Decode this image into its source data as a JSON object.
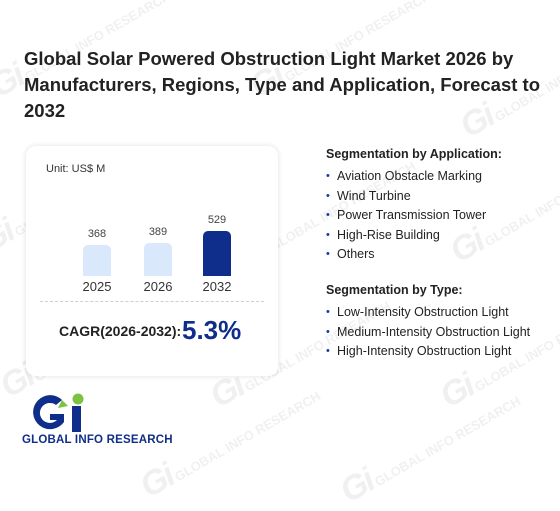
{
  "page": {
    "title": "Global Solar Powered Obstruction Light Market 2026 by Manufacturers, Regions, Type and Application, Forecast to 2032"
  },
  "chart": {
    "unit_label": "Unit: US$ M",
    "cagr_label": "CAGR(2026-2032):",
    "cagr_value": "5.3%"
  },
  "chart_data": {
    "type": "bar",
    "categories": [
      "2025",
      "2026",
      "2032"
    ],
    "values": [
      368,
      389,
      529
    ],
    "value_labels": [
      "368",
      "389",
      "529"
    ],
    "title": "",
    "xlabel": "",
    "ylabel": "",
    "unit": "US$ M",
    "colors": [
      "#d9e8fb",
      "#d9e8fb",
      "#0f2d8a"
    ]
  },
  "segments": {
    "application": {
      "title": "Segmentation by Application:",
      "items": [
        "Aviation Obstacle Marking",
        "Wind Turbine",
        "Power Transmission Tower",
        "High-Rise Building",
        "Others"
      ]
    },
    "type": {
      "title": "Segmentation by Type:",
      "items": [
        "Low-Intensity Obstruction Light",
        "Medium-Intensity Obstruction Light",
        "High-Intensity Obstruction Light"
      ]
    }
  },
  "brand": {
    "name": "GLOBAL INFO RESEARCH",
    "logo_mark": "Gi",
    "watermark_text": "GLOBAL INFO RESEARCH",
    "colors": {
      "primary": "#0f2d8a",
      "accent": "#7cc242"
    }
  }
}
